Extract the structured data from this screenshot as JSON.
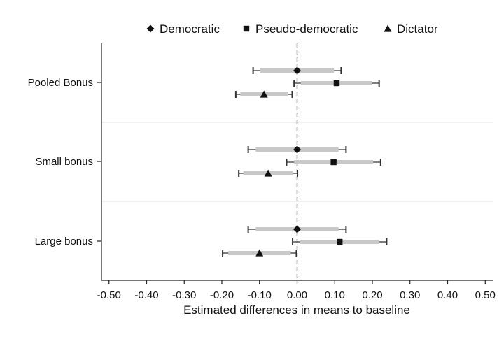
{
  "chart_data": {
    "type": "scatter",
    "subtype": "coefficient-plot",
    "title": "",
    "xlabel": "Estimated differences in means to baseline",
    "ylabel": "",
    "xlim": [
      -0.52,
      0.52
    ],
    "xticks": [
      -0.5,
      -0.4,
      -0.3,
      -0.2,
      -0.1,
      0.0,
      0.1,
      0.2,
      0.3,
      0.4,
      0.5
    ],
    "xtick_labels": [
      "-0.50",
      "-0.40",
      "-0.30",
      "-0.20",
      "-0.10",
      "0.00",
      "0.10",
      "0.20",
      "0.30",
      "0.40",
      "0.50"
    ],
    "reference_line": 0.0,
    "legend_position": "top",
    "groups": [
      "Pooled Bonus",
      "Small bonus",
      "Large bonus"
    ],
    "series": [
      {
        "name": "Democratic",
        "marker": "diamond",
        "points": [
          {
            "group": "Pooled Bonus",
            "estimate": 0.0,
            "ci95": [
              -0.117,
              0.117
            ],
            "ci90": [
              -0.098,
              0.098
            ]
          },
          {
            "group": "Small bonus",
            "estimate": 0.0,
            "ci95": [
              -0.13,
              0.13
            ],
            "ci90": [
              -0.11,
              0.11
            ]
          },
          {
            "group": "Large bonus",
            "estimate": 0.0,
            "ci95": [
              -0.13,
              0.13
            ],
            "ci90": [
              -0.11,
              0.11
            ]
          }
        ]
      },
      {
        "name": "Pseudo-democratic",
        "marker": "square",
        "points": [
          {
            "group": "Pooled Bonus",
            "estimate": 0.105,
            "ci95": [
              -0.008,
              0.218
            ],
            "ci90": [
              0.01,
              0.2
            ]
          },
          {
            "group": "Small bonus",
            "estimate": 0.097,
            "ci95": [
              -0.028,
              0.222
            ],
            "ci90": [
              -0.008,
              0.202
            ]
          },
          {
            "group": "Large bonus",
            "estimate": 0.113,
            "ci95": [
              -0.012,
              0.238
            ],
            "ci90": [
              0.008,
              0.218
            ]
          }
        ]
      },
      {
        "name": "Dictator",
        "marker": "triangle",
        "points": [
          {
            "group": "Pooled Bonus",
            "estimate": -0.088,
            "ci95": [
              -0.163,
              -0.013
            ],
            "ci90": [
              -0.151,
              -0.025
            ]
          },
          {
            "group": "Small bonus",
            "estimate": -0.077,
            "ci95": [
              -0.155,
              0.001
            ],
            "ci90": [
              -0.143,
              -0.011
            ]
          },
          {
            "group": "Large bonus",
            "estimate": -0.1,
            "ci95": [
              -0.198,
              -0.002
            ],
            "ci90": [
              -0.183,
              -0.017
            ]
          }
        ]
      }
    ]
  }
}
